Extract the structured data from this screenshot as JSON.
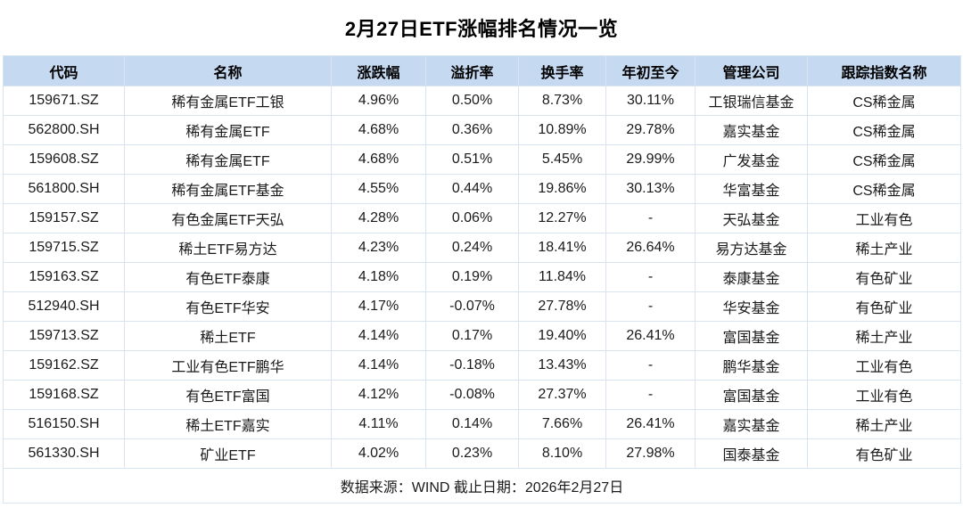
{
  "title": "2月27日ETF涨幅排名情况一览",
  "chart_data": {
    "type": "table",
    "title": "2月27日ETF涨幅排名情况一览",
    "columns": [
      "代码",
      "名称",
      "涨跌幅",
      "溢折率",
      "换手率",
      "年初至今",
      "管理公司",
      "跟踪指数名称"
    ],
    "rows": [
      [
        "159671.SZ",
        "稀有金属ETF工银",
        "4.96%",
        "0.50%",
        "8.73%",
        "30.11%",
        "工银瑞信基金",
        "CS稀金属"
      ],
      [
        "562800.SH",
        "稀有金属ETF",
        "4.68%",
        "0.36%",
        "10.89%",
        "29.78%",
        "嘉实基金",
        "CS稀金属"
      ],
      [
        "159608.SZ",
        "稀有金属ETF",
        "4.68%",
        "0.51%",
        "5.45%",
        "29.99%",
        "广发基金",
        "CS稀金属"
      ],
      [
        "561800.SH",
        "稀有金属ETF基金",
        "4.55%",
        "0.44%",
        "19.86%",
        "30.13%",
        "华富基金",
        "CS稀金属"
      ],
      [
        "159157.SZ",
        "有色金属ETF天弘",
        "4.28%",
        "0.06%",
        "12.27%",
        "-",
        "天弘基金",
        "工业有色"
      ],
      [
        "159715.SZ",
        "稀土ETF易方达",
        "4.23%",
        "0.24%",
        "18.41%",
        "26.64%",
        "易方达基金",
        "稀土产业"
      ],
      [
        "159163.SZ",
        "有色ETF泰康",
        "4.18%",
        "0.19%",
        "11.84%",
        "-",
        "泰康基金",
        "有色矿业"
      ],
      [
        "512940.SH",
        "有色ETF华安",
        "4.17%",
        "-0.07%",
        "27.78%",
        "-",
        "华安基金",
        "有色矿业"
      ],
      [
        "159713.SZ",
        "稀土ETF",
        "4.14%",
        "0.17%",
        "19.40%",
        "26.41%",
        "富国基金",
        "稀土产业"
      ],
      [
        "159162.SZ",
        "工业有色ETF鹏华",
        "4.14%",
        "-0.18%",
        "13.43%",
        "-",
        "鹏华基金",
        "工业有色"
      ],
      [
        "159168.SZ",
        "有色ETF富国",
        "4.12%",
        "-0.08%",
        "27.37%",
        "-",
        "富国基金",
        "工业有色"
      ],
      [
        "516150.SH",
        "稀土ETF嘉实",
        "4.11%",
        "0.14%",
        "7.66%",
        "26.41%",
        "嘉实基金",
        "稀土产业"
      ],
      [
        "561330.SH",
        "矿业ETF",
        "4.02%",
        "0.23%",
        "8.10%",
        "27.98%",
        "国泰基金",
        "有色矿业"
      ]
    ],
    "layout_hints": {
      "header_style": "light-blue filled row, bold text",
      "grid": "on",
      "row_fill": "white",
      "alignment": "all cells centered"
    }
  },
  "footer": {
    "text": "数据来源：WIND 截止日期：2026年2月27日"
  },
  "colors": {
    "header_bg": "#c5d9f1",
    "grid_line": "#d9e4f1",
    "text": "#1a1a1a",
    "background": "#ffffff"
  }
}
